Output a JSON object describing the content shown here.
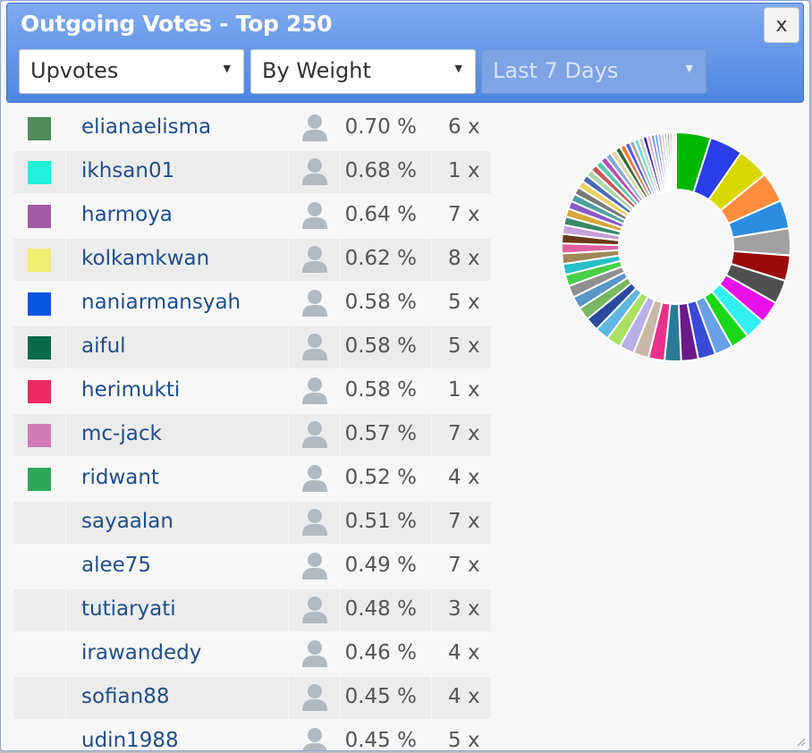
{
  "header": {
    "title": "Outgoing Votes - Top 250",
    "close_label": "x"
  },
  "filters": {
    "vote_type": "Upvotes",
    "sort": "By Weight",
    "period": "Last 7 Days"
  },
  "voters": [
    {
      "name": "elianaelisma",
      "pct": "0.70 %",
      "count": "6 x",
      "color": "#4f8a5b"
    },
    {
      "name": "ikhsan01",
      "pct": "0.68 %",
      "count": "1 x",
      "color": "#22f0d8"
    },
    {
      "name": "harmoya",
      "pct": "0.64 %",
      "count": "7 x",
      "color": "#a25ca3"
    },
    {
      "name": "kolkamkwan",
      "pct": "0.62 %",
      "count": "8 x",
      "color": "#eeee70"
    },
    {
      "name": "naniarmansyah",
      "pct": "0.58 %",
      "count": "5 x",
      "color": "#0b56e0"
    },
    {
      "name": "aiful",
      "pct": "0.58 %",
      "count": "5 x",
      "color": "#0c6a4a"
    },
    {
      "name": "herimukti",
      "pct": "0.58 %",
      "count": "1 x",
      "color": "#ea2a62"
    },
    {
      "name": "mc-jack",
      "pct": "0.57 %",
      "count": "7 x",
      "color": "#d07bb8"
    },
    {
      "name": "ridwant",
      "pct": "0.52 %",
      "count": "4 x",
      "color": "#2fa85a"
    },
    {
      "name": "sayaalan",
      "pct": "0.51 %",
      "count": "7 x",
      "color": ""
    },
    {
      "name": "alee75",
      "pct": "0.49 %",
      "count": "7 x",
      "color": ""
    },
    {
      "name": "tutiaryati",
      "pct": "0.48 %",
      "count": "3 x",
      "color": ""
    },
    {
      "name": "irawandedy",
      "pct": "0.46 %",
      "count": "4 x",
      "color": ""
    },
    {
      "name": "sofian88",
      "pct": "0.45 %",
      "count": "4 x",
      "color": ""
    },
    {
      "name": "udin1988",
      "pct": "0.45 %",
      "count": "5 x",
      "color": ""
    }
  ],
  "chart_data": {
    "type": "pie",
    "variant": "donut",
    "slice_colors": [
      "#00b800",
      "#2a3de8",
      "#d8d800",
      "#ff8c3a",
      "#2a8de0",
      "#a0a0a0",
      "#9a0a0a",
      "#505050",
      "#e810e8",
      "#30f0f0",
      "#18d818",
      "#6aa0e8",
      "#3a4ad8",
      "#6a1a8a",
      "#2a7a9a",
      "#e8308a",
      "#c8b8a8",
      "#b8b0e8",
      "#a8e060",
      "#60b8e0",
      "#2a4aa0",
      "#78b860",
      "#5898c8",
      "#909090",
      "#48d048",
      "#28c0c8",
      "#a08858",
      "#e060a0",
      "#6a3a1a",
      "#c8a0d8",
      "#3a8a6a",
      "#d8a838",
      "#8858c8",
      "#50a0a0",
      "#787878",
      "#e8d060",
      "#4868b8",
      "#a8d8a8",
      "#c85858",
      "#58c8a8",
      "#b848b8",
      "#88a8d8",
      "#d8d8a8",
      "#386838",
      "#e87838",
      "#5858e8",
      "#a8a8a8",
      "#68d8d8",
      "#c8c8c8",
      "#2828a8",
      "#e8a8c8",
      "#8888e8",
      "#58a8f8",
      "#d888d8",
      "#a8c8e8",
      "#78e878",
      "#e85858",
      "#38a8a8",
      "#c8e838",
      "#888838"
    ]
  }
}
